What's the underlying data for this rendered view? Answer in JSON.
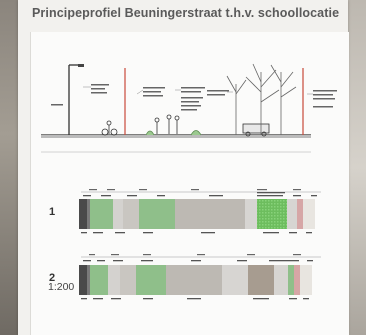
{
  "title": "Principeprofiel Beuningerstraat t.h.v. schoollocatie",
  "profile_labels": {
    "row1": "1",
    "row2": "2"
  },
  "scale": "1:200",
  "colors": {
    "dark": "#555555",
    "grey": "#bdb9b3",
    "lightgrey": "#d7d5d2",
    "green": "#8fbf8a",
    "brightgreen": "#77c36a",
    "brown": "#a79c90",
    "sand": "#e9e4dc",
    "pink": "#d8a8a8"
  }
}
